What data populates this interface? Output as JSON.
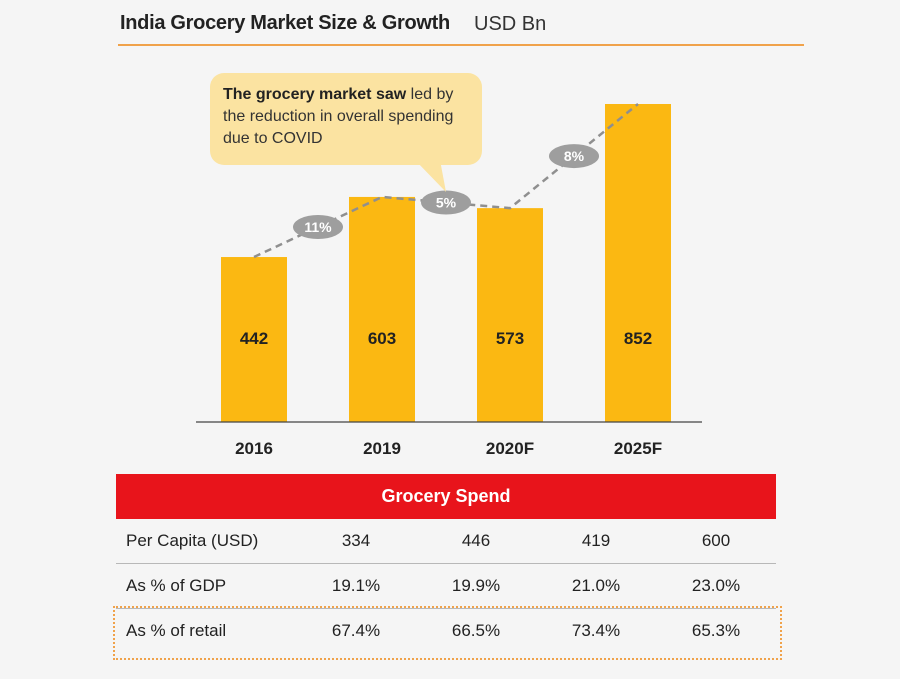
{
  "header": {
    "title": "India Grocery Market Size & Growth",
    "unit": "USD Bn"
  },
  "callout": {
    "bold": "The grocery market saw",
    "rest": " led by the reduction in overall spending due to COVID"
  },
  "chart_data": {
    "type": "bar",
    "title": "India Grocery Market Size & Growth",
    "ylabel": "USD Bn",
    "xlabel": "",
    "categories": [
      "2016",
      "2019",
      "2020F",
      "2025F"
    ],
    "values": [
      442,
      603,
      573,
      852
    ],
    "ylim": [
      0,
      852
    ],
    "bar_color": "#fbb812",
    "growth_labels": [
      {
        "between": [
          "2016",
          "2019"
        ],
        "label": "11%"
      },
      {
        "between": [
          "2019",
          "2020F"
        ],
        "label": "5%"
      },
      {
        "between": [
          "2020F",
          "2025F"
        ],
        "label": "8%"
      }
    ],
    "trend_line": "dashed",
    "grid": false
  },
  "table": {
    "header": "Grocery Spend",
    "rows": [
      {
        "label": "Per Capita (USD)",
        "values": [
          "334",
          "446",
          "419",
          "600"
        ]
      },
      {
        "label": "As % of GDP",
        "values": [
          "19.1%",
          "19.9%",
          "21.0%",
          "23.0%"
        ]
      },
      {
        "label": "As % of retail",
        "values": [
          "67.4%",
          "66.5%",
          "73.4%",
          "65.3%"
        ],
        "highlighted": true
      }
    ]
  },
  "colors": {
    "accent": "#f0a24a",
    "bar": "#fbb812",
    "table_header": "#e8141b",
    "callout_bg": "#fbe3a1",
    "pill": "#9e9e9e"
  }
}
